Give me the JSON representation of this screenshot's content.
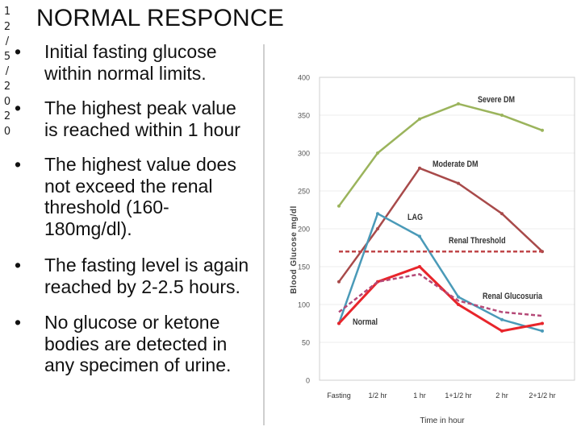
{
  "slide": {
    "title": "NORMAL RESPONCE",
    "date_chars": [
      "1",
      "2",
      "/",
      "5",
      "/",
      "2",
      "0",
      "2",
      "0"
    ],
    "bullet_glyph": "•",
    "bullets": [
      "Initial fasting glucose\nwithin normal limits.",
      "The highest peak value\nis reached within 1 hour",
      "The highest value does\nnot exceed the renal\nthreshold (160-\n180mg/dl).",
      "The fasting level is again\nreached by 2-2.5 hours.",
      "No glucose or ketone\nbodies are detected in\nany specimen of urine."
    ]
  },
  "chart_data": {
    "type": "line",
    "title": "",
    "xlabel": "Time in hour",
    "ylabel": "Blood Glucose mg/dl",
    "categories": [
      "Fasting",
      "1/2 hr",
      "1 hr",
      "1+1/2 hr",
      "2 hr",
      "2+1/2 hr"
    ],
    "ylim": [
      0,
      400
    ],
    "yticks": [
      0,
      50,
      100,
      150,
      200,
      250,
      300,
      350,
      400
    ],
    "series": [
      {
        "name": "Severe DM",
        "color": "#9bb45c",
        "dashed": false,
        "values": [
          230,
          300,
          345,
          365,
          350,
          330
        ]
      },
      {
        "name": "Moderate DM",
        "color": "#a84a4a",
        "dashed": false,
        "values": [
          130,
          200,
          280,
          260,
          220,
          170
        ]
      },
      {
        "name": "LAG",
        "color": "#4a9ab8",
        "dashed": false,
        "values": [
          75,
          220,
          190,
          110,
          80,
          65
        ]
      },
      {
        "name": "Normal",
        "color": "#e8252b",
        "dashed": false,
        "values": [
          75,
          130,
          150,
          100,
          65,
          75
        ]
      },
      {
        "name": "Renal Glucosuria",
        "color": "#b54a78",
        "dashed": true,
        "values": [
          90,
          130,
          140,
          105,
          90,
          85
        ]
      },
      {
        "name": "Renal Threshold",
        "color": "#c0474a",
        "dashed": true,
        "values": [
          170,
          170,
          170,
          170,
          170,
          170
        ]
      }
    ],
    "labels": [
      "Severe DM",
      "Moderate DM",
      "LAG",
      "Renal Threshold",
      "Renal Glucosuria",
      "Normal"
    ]
  }
}
